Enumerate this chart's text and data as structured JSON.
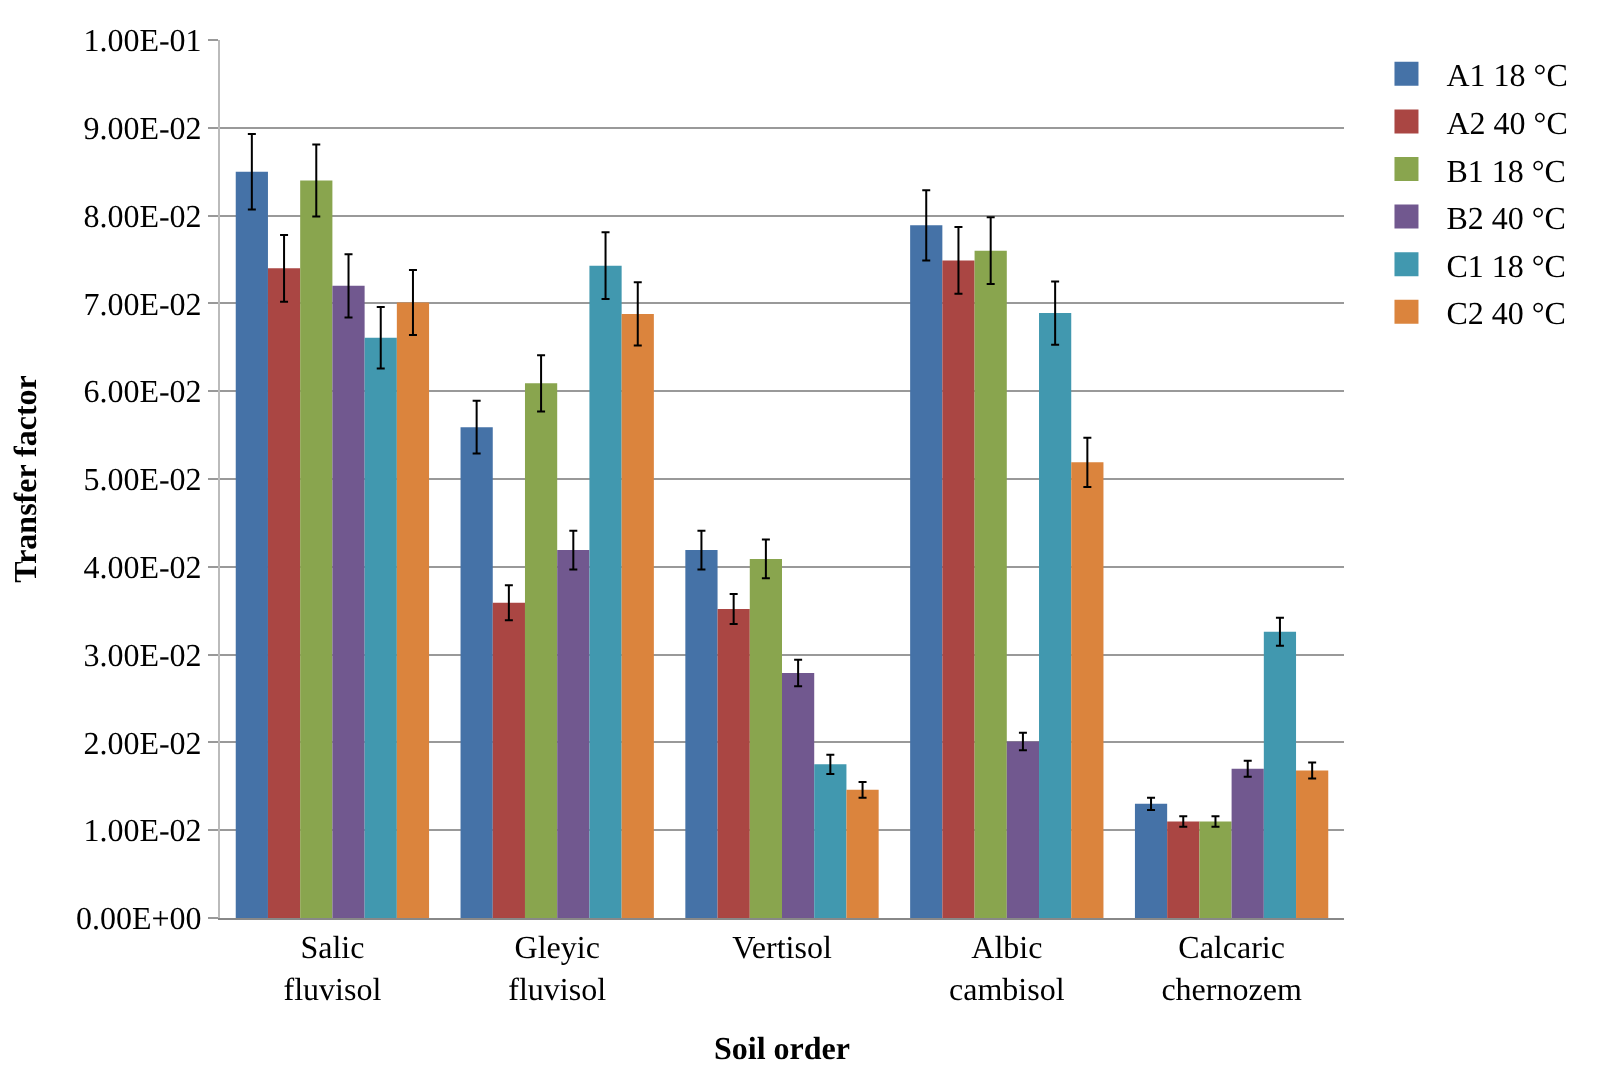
{
  "chart_data": {
    "type": "bar",
    "xlabel": "Soil order",
    "ylabel": "Transfer factor",
    "categories": [
      "Salic fluvisol",
      "Gleyic fluvisol",
      "Vertisol",
      "Albic cambisol",
      "Calcaric chernozem"
    ],
    "series": [
      {
        "name": "A1 18 °C",
        "color": "#4572a7",
        "values": [
          0.085,
          0.0559,
          0.0419,
          0.0789,
          0.013
        ],
        "errors": [
          0.0043,
          0.003,
          0.0022,
          0.004,
          0.0007
        ]
      },
      {
        "name": "A2 40 °C",
        "color": "#aa4643",
        "values": [
          0.074,
          0.0359,
          0.0352,
          0.0749,
          0.011
        ],
        "errors": [
          0.0038,
          0.002,
          0.0017,
          0.0038,
          0.0006
        ]
      },
      {
        "name": "B1 18 °C",
        "color": "#89a54e",
        "values": [
          0.084,
          0.0609,
          0.0409,
          0.076,
          0.011
        ],
        "errors": [
          0.0041,
          0.0032,
          0.0022,
          0.0038,
          0.0006
        ]
      },
      {
        "name": "B2 40 °C",
        "color": "#71588f",
        "values": [
          0.072,
          0.0419,
          0.0279,
          0.0201,
          0.017
        ],
        "errors": [
          0.0036,
          0.0022,
          0.0015,
          0.001,
          0.0009
        ]
      },
      {
        "name": "C1 18 °C",
        "color": "#4198af",
        "values": [
          0.0661,
          0.0743,
          0.0175,
          0.0689,
          0.0326
        ],
        "errors": [
          0.0035,
          0.0038,
          0.0011,
          0.0036,
          0.0016
        ]
      },
      {
        "name": "C2 40 °C",
        "color": "#db843d",
        "values": [
          0.0701,
          0.0688,
          0.0146,
          0.0519,
          0.0168
        ],
        "errors": [
          0.0037,
          0.0036,
          0.0009,
          0.0028,
          0.0009
        ]
      }
    ],
    "ylim": [
      0,
      0.1
    ],
    "yticks": [
      {
        "value": 0,
        "label": "0.00E+00"
      },
      {
        "value": 0.01,
        "label": "1.00E-02"
      },
      {
        "value": 0.02,
        "label": "2.00E-02"
      },
      {
        "value": 0.03,
        "label": "3.00E-02"
      },
      {
        "value": 0.04,
        "label": "4.00E-02"
      },
      {
        "value": 0.05,
        "label": "5.00E-02"
      },
      {
        "value": 0.06,
        "label": "6.00E-02"
      },
      {
        "value": 0.07,
        "label": "7.00E-02"
      },
      {
        "value": 0.08,
        "label": "8.00E-02"
      },
      {
        "value": 0.09,
        "label": "9.00E-02"
      },
      {
        "value": 0.1,
        "label": "1.00E-01"
      }
    ],
    "grid": "y",
    "legend": "right"
  }
}
